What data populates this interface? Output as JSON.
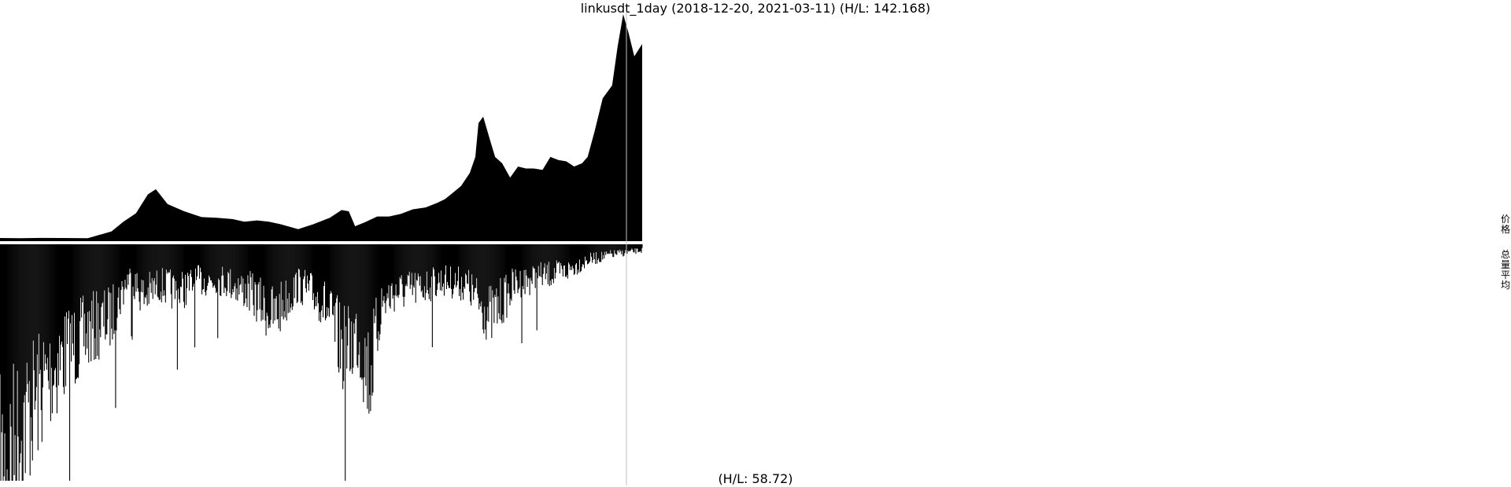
{
  "chart_data": {
    "type": "area",
    "title": "linkusdt_1day (2018-12-20, 2021-03-11) (H/L: 142.168)",
    "x_start": "2018-12-20",
    "x_end": "2021-03-11",
    "colors": {
      "fill": "#000000",
      "divider": "#ffffff",
      "marker": "#bfbfbf",
      "background": "#ffffff"
    },
    "series": [
      {
        "name": "价格",
        "x": [
          "2018-12-20",
          "2019-01-15",
          "2019-02-10",
          "2019-03-10",
          "2019-04-10",
          "2019-05-10",
          "2019-05-25",
          "2019-06-10",
          "2019-06-25",
          "2019-07-05",
          "2019-07-20",
          "2019-08-10",
          "2019-09-01",
          "2019-09-20",
          "2019-10-10",
          "2019-10-25",
          "2019-11-10",
          "2019-11-25",
          "2019-12-10",
          "2020-01-01",
          "2020-01-20",
          "2020-02-10",
          "2020-02-25",
          "2020-03-05",
          "2020-03-13",
          "2020-03-25",
          "2020-04-10",
          "2020-04-25",
          "2020-05-10",
          "2020-05-25",
          "2020-06-10",
          "2020-06-25",
          "2020-07-05",
          "2020-07-15",
          "2020-07-25",
          "2020-08-05",
          "2020-08-12",
          "2020-08-16",
          "2020-08-22",
          "2020-09-01",
          "2020-09-06",
          "2020-09-15",
          "2020-09-25",
          "2020-10-05",
          "2020-10-15",
          "2020-10-25",
          "2020-11-05",
          "2020-11-15",
          "2020-11-25",
          "2020-12-05",
          "2020-12-15",
          "2020-12-25",
          "2021-01-01",
          "2021-01-10",
          "2021-01-20",
          "2021-02-01",
          "2021-02-08",
          "2021-02-15",
          "2021-02-22",
          "2021-03-01",
          "2021-03-11"
        ],
        "values": [
          0.48,
          0.45,
          0.5,
          0.48,
          0.45,
          1.5,
          3.0,
          4.3,
          7.2,
          8.0,
          5.7,
          4.6,
          3.7,
          3.6,
          3.4,
          3.0,
          3.2,
          3.0,
          2.6,
          1.85,
          2.6,
          3.6,
          4.8,
          4.6,
          2.3,
          2.9,
          3.8,
          3.8,
          4.2,
          4.9,
          5.2,
          5.9,
          6.5,
          7.5,
          8.5,
          10.5,
          13.0,
          18.2,
          19.2,
          15.0,
          13.0,
          12.0,
          9.8,
          11.5,
          11.2,
          11.2,
          11.0,
          13.0,
          12.5,
          12.3,
          11.5,
          12.0,
          13.0,
          17.0,
          22.0,
          24.0,
          30.0,
          35.0,
          32.0,
          28.5,
          30.4
        ]
      },
      {
        "name": "总量平均",
        "x": [
          "2018-12-20",
          "2019-01-05",
          "2019-01-25",
          "2019-02-15",
          "2019-03-10",
          "2019-04-10",
          "2019-05-10",
          "2019-06-01",
          "2019-06-20",
          "2019-07-10",
          "2019-08-01",
          "2019-09-01",
          "2019-10-01",
          "2019-11-01",
          "2019-12-01",
          "2020-01-01",
          "2020-02-01",
          "2020-03-01",
          "2020-03-15",
          "2020-04-01",
          "2020-04-15",
          "2020-05-01",
          "2020-06-01",
          "2020-07-01",
          "2020-08-01",
          "2020-08-15",
          "2020-09-01",
          "2020-10-01",
          "2020-11-01",
          "2020-12-01",
          "2021-01-01",
          "2021-02-01",
          "2021-03-11"
        ],
        "values": [
          58.72,
          50,
          42,
          34,
          28,
          22,
          18,
          8,
          13,
          10,
          12,
          9,
          9,
          12,
          18,
          10,
          14,
          28,
          22,
          33,
          15,
          12,
          11,
          9,
          10,
          14,
          18,
          10,
          8,
          7,
          4,
          2.5,
          1.5
        ]
      }
    ],
    "lower_hl_label": "(H/L: 58.72)",
    "legend_placement": "right",
    "grid": false
  }
}
